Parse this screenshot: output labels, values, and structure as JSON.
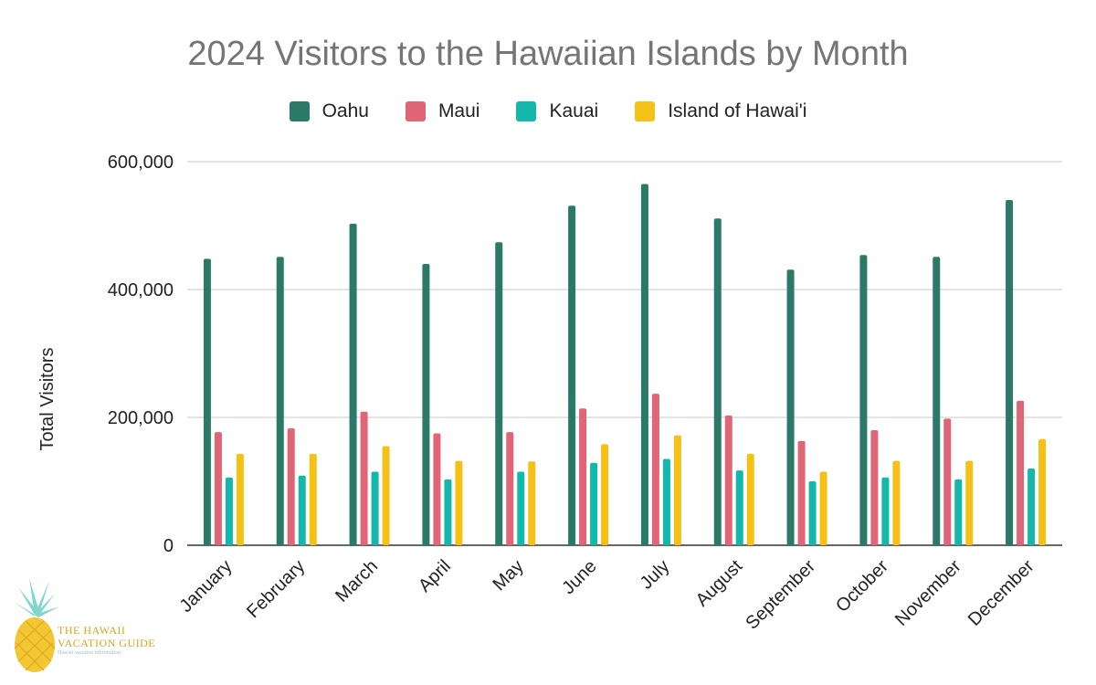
{
  "chart_data": {
    "type": "bar",
    "title": "2024 Visitors to the Hawaiian Islands by Month",
    "xlabel": "",
    "ylabel": "Total Visitors",
    "ylim": [
      0,
      600000
    ],
    "yticks": [
      0,
      200000,
      400000,
      600000
    ],
    "ytick_labels": [
      "0",
      "200,000",
      "400,000",
      "600,000"
    ],
    "grid": true,
    "legend_position": "top",
    "categories": [
      "January",
      "February",
      "March",
      "April",
      "May",
      "June",
      "July",
      "August",
      "September",
      "October",
      "November",
      "December"
    ],
    "series": [
      {
        "name": "Oahu",
        "color": "#2b7a67",
        "values": [
          448000,
          451000,
          503000,
          440000,
          474000,
          531000,
          565000,
          511000,
          431000,
          454000,
          451000,
          540000
        ]
      },
      {
        "name": "Maui",
        "color": "#e06675",
        "values": [
          177000,
          183000,
          209000,
          175000,
          177000,
          214000,
          237000,
          203000,
          163000,
          180000,
          198000,
          226000
        ]
      },
      {
        "name": "Kauai",
        "color": "#14b8aa",
        "values": [
          106000,
          109000,
          115000,
          103000,
          115000,
          129000,
          135000,
          117000,
          100000,
          106000,
          103000,
          120000
        ]
      },
      {
        "name": "Island of Hawai'i",
        "color": "#f6c116",
        "values": [
          143000,
          143000,
          155000,
          132000,
          131000,
          158000,
          172000,
          143000,
          115000,
          132000,
          132000,
          166000
        ]
      }
    ]
  },
  "logo": {
    "line1": "THE HAWAII",
    "line2": "VACATION GUIDE",
    "tagline": "Hawaii vacation information"
  }
}
